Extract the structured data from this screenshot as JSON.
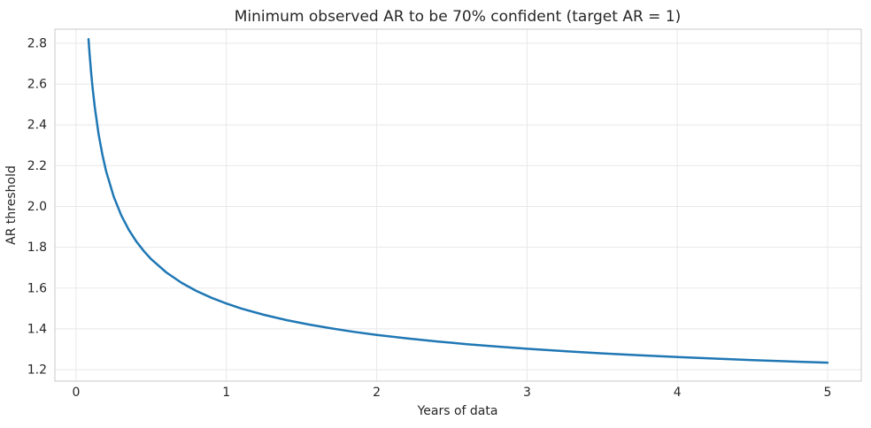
{
  "figure": {
    "kind": "static-plot"
  },
  "colors": {
    "line": "#1f77b4",
    "grid": "#e8e8e8",
    "spine": "#c9c9c9",
    "text": "#262626",
    "background": "#ffffff"
  },
  "chart_data": {
    "type": "line",
    "title": "Minimum observed AR to be 70% confident (target AR = 1)",
    "xlabel": "Years of data",
    "ylabel": "AR threshold",
    "grid": true,
    "legend_position": "none",
    "xlim": [
      -0.141,
      5.224
    ],
    "ylim": [
      1.144,
      2.869
    ],
    "xticks": [
      {
        "value": 0,
        "label": "0"
      },
      {
        "value": 1,
        "label": "1"
      },
      {
        "value": 2,
        "label": "2"
      },
      {
        "value": 3,
        "label": "3"
      },
      {
        "value": 4,
        "label": "4"
      },
      {
        "value": 5,
        "label": "5"
      }
    ],
    "yticks": [
      {
        "value": 1.2,
        "label": "1.2"
      },
      {
        "value": 1.4,
        "label": "1.4"
      },
      {
        "value": 1.6,
        "label": "1.6"
      },
      {
        "value": 1.8,
        "label": "1.8"
      },
      {
        "value": 2.0,
        "label": "2.0"
      },
      {
        "value": 2.2,
        "label": "2.2"
      },
      {
        "value": 2.4,
        "label": "2.4"
      },
      {
        "value": 2.6,
        "label": "2.6"
      },
      {
        "value": 2.8,
        "label": "2.8"
      }
    ],
    "series": [
      {
        "name": "minimum-observed-AR-threshold",
        "line_color": "#1f77b4",
        "line_width": 2.5,
        "x": [
          0.083,
          0.09,
          0.1,
          0.111,
          0.125,
          0.15,
          0.175,
          0.2,
          0.25,
          0.3,
          0.35,
          0.4,
          0.45,
          0.5,
          0.6,
          0.7,
          0.8,
          0.9,
          1.0,
          1.1,
          1.25,
          1.4,
          1.55,
          1.7,
          1.85,
          2.0,
          2.2,
          2.4,
          2.6,
          2.8,
          3.0,
          3.25,
          3.5,
          3.75,
          4.0,
          4.25,
          4.5,
          4.75,
          5.0
        ],
        "y": [
          2.8202,
          2.748,
          2.6584,
          2.5739,
          2.4832,
          2.354,
          2.2536,
          2.1726,
          2.0488,
          1.9574,
          1.8864,
          1.8292,
          1.7818,
          1.7416,
          1.677,
          1.6268,
          1.5863,
          1.5528,
          1.5244,
          1.5,
          1.469,
          1.4432,
          1.4212,
          1.4022,
          1.3856,
          1.3708,
          1.3536,
          1.3385,
          1.3252,
          1.3134,
          1.3028,
          1.2909,
          1.2803,
          1.2708,
          1.2622,
          1.2544,
          1.2472,
          1.2406,
          1.2345
        ]
      }
    ]
  }
}
